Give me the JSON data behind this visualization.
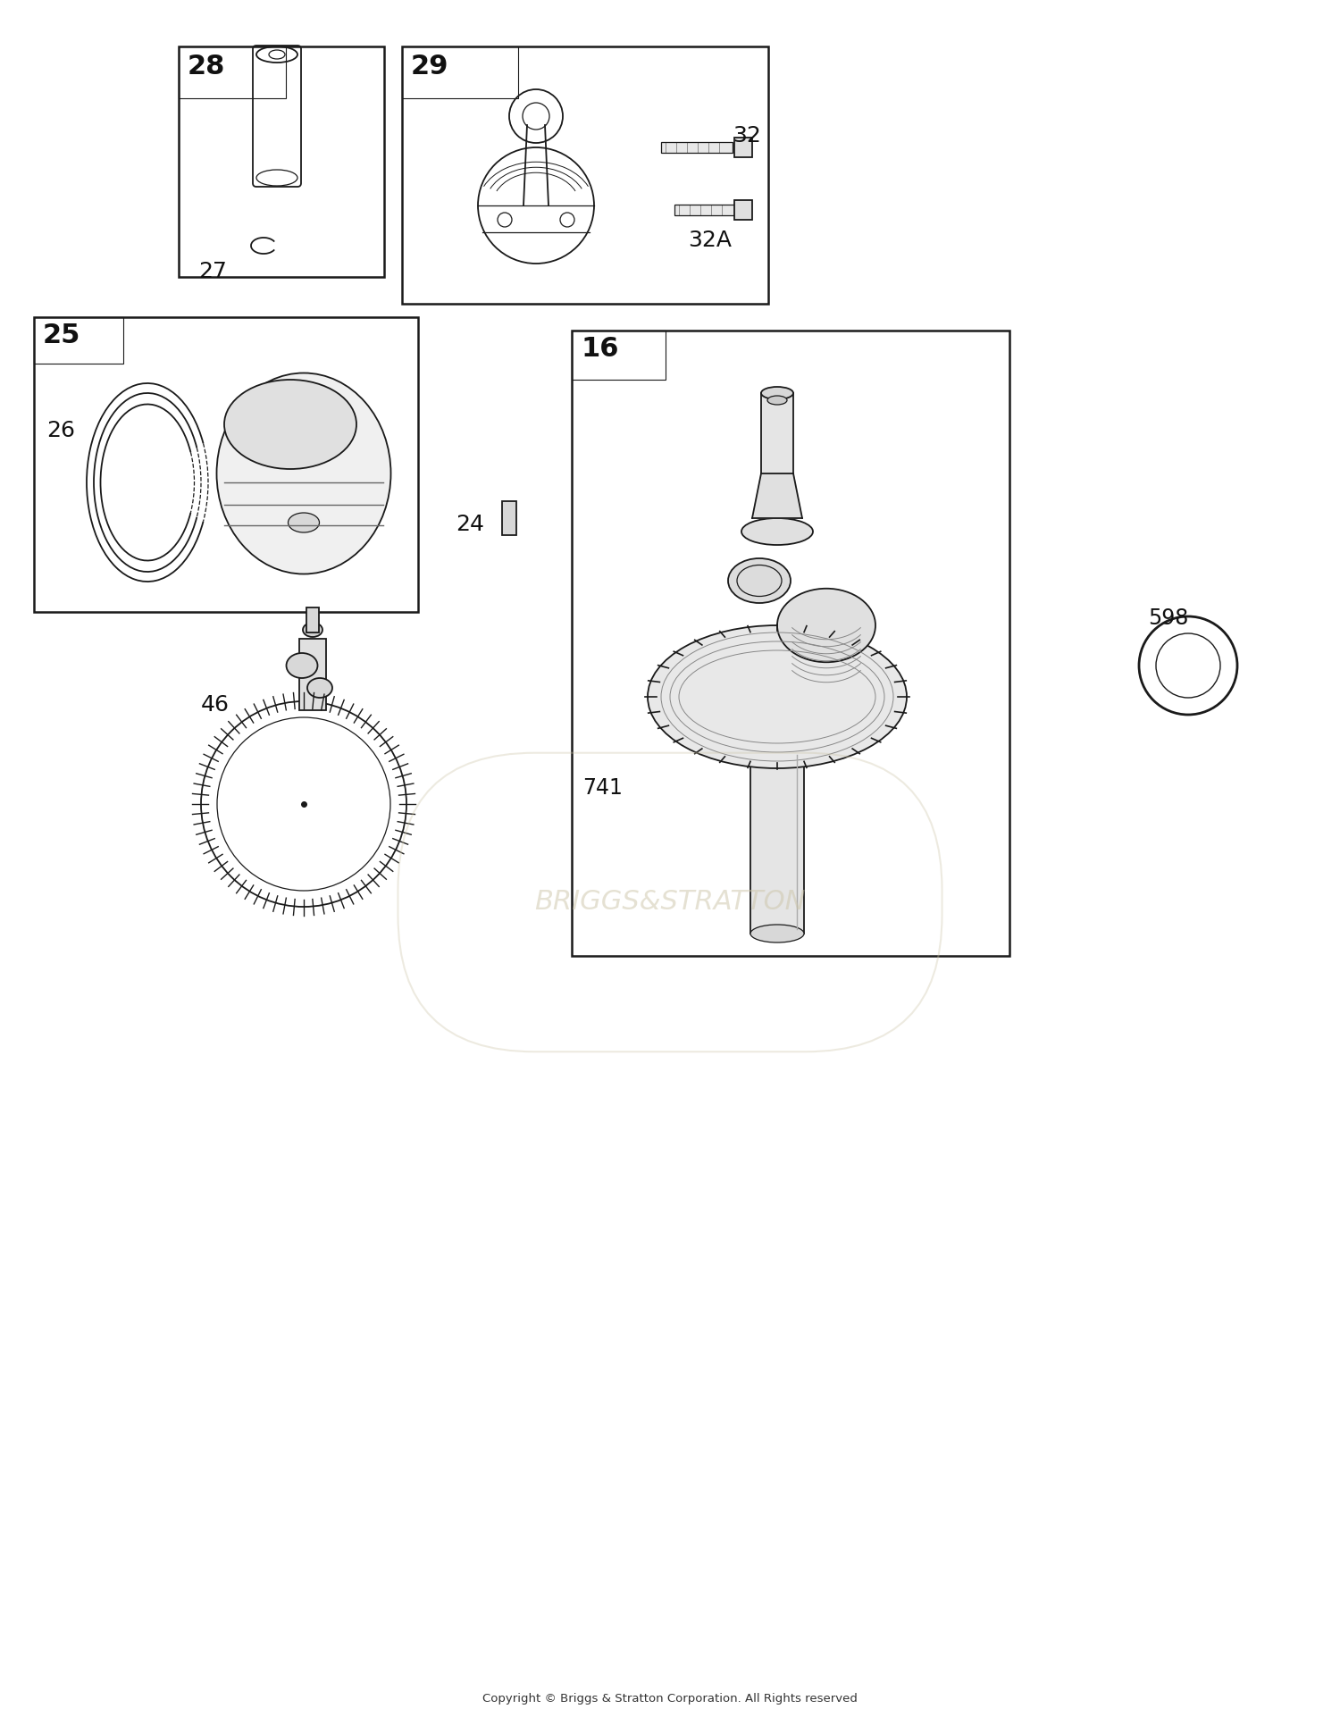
{
  "bg_color": "#ffffff",
  "fig_width": 15.0,
  "fig_height": 19.41,
  "dpi": 100,
  "copyright_text": "Copyright © Briggs & Stratton Corporation. All Rights reserved",
  "watermark_text": "BRIGGS&STRATTON",
  "line_color": "#1a1a1a",
  "label_color": "#111111"
}
